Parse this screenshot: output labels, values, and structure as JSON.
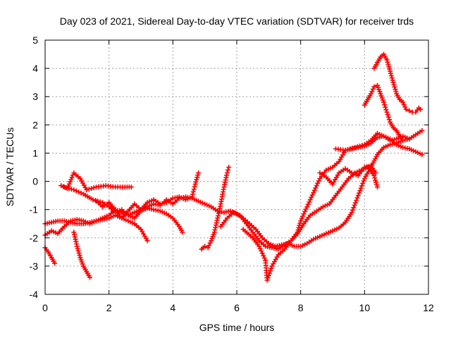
{
  "chart_data": {
    "type": "scatter",
    "title": "Day 023 of 2021, Sidereal Day-to-day VTEC variation (SDTVAR) for receiver trds",
    "xlabel": "GPS time / hours",
    "ylabel": "SDTVAR / TECUs",
    "xlim": [
      0,
      12
    ],
    "ylim": [
      -4,
      5
    ],
    "xticks": [
      0,
      2,
      4,
      6,
      8,
      10,
      12
    ],
    "yticks": [
      -4,
      -3,
      -2,
      -1,
      0,
      1,
      2,
      3,
      4,
      5
    ],
    "grid": true,
    "marker": "+",
    "color": "#ff0000",
    "series": [
      {
        "points": [
          [
            0.0,
            -2.35
          ],
          [
            0.1,
            -2.5
          ],
          [
            0.2,
            -2.7
          ],
          [
            0.3,
            -2.9
          ]
        ]
      },
      {
        "points": [
          [
            0.9,
            -1.8
          ],
          [
            1.0,
            -2.3
          ],
          [
            1.1,
            -2.7
          ],
          [
            1.2,
            -3.0
          ],
          [
            1.3,
            -3.2
          ],
          [
            1.4,
            -3.4
          ]
        ]
      },
      {
        "points": [
          [
            0.0,
            -1.9
          ],
          [
            0.2,
            -1.75
          ],
          [
            0.4,
            -1.85
          ],
          [
            0.6,
            -1.6
          ],
          [
            0.8,
            -1.4
          ],
          [
            1.0,
            -1.35
          ],
          [
            1.2,
            -1.4
          ],
          [
            1.4,
            -1.5
          ],
          [
            1.6,
            -1.4
          ],
          [
            1.8,
            -1.35
          ],
          [
            2.0,
            -1.3
          ],
          [
            2.2,
            -1.2
          ],
          [
            2.4,
            -1.3
          ],
          [
            2.6,
            -1.4
          ],
          [
            2.8,
            -1.5
          ],
          [
            3.0,
            -1.7
          ],
          [
            3.2,
            -2.1
          ]
        ]
      },
      {
        "points": [
          [
            0.0,
            -1.5
          ],
          [
            0.2,
            -1.45
          ],
          [
            0.4,
            -1.4
          ],
          [
            0.6,
            -1.4
          ],
          [
            0.8,
            -1.45
          ],
          [
            1.0,
            -1.5
          ],
          [
            1.2,
            -1.5
          ],
          [
            1.4,
            -1.45
          ],
          [
            1.6,
            -1.4
          ],
          [
            1.8,
            -1.3
          ],
          [
            2.0,
            -1.2
          ],
          [
            2.2,
            -1.0
          ],
          [
            2.4,
            -1.1
          ],
          [
            2.6,
            -1.2
          ],
          [
            2.8,
            -1.1
          ],
          [
            3.0,
            -1.0
          ],
          [
            3.2,
            -0.75
          ],
          [
            3.4,
            -0.65
          ],
          [
            3.6,
            -0.8
          ],
          [
            3.8,
            -0.75
          ],
          [
            4.0,
            -0.6
          ],
          [
            4.2,
            -0.55
          ],
          [
            4.4,
            -0.65
          ],
          [
            4.6,
            -0.55
          ],
          [
            4.7,
            -0.1
          ],
          [
            4.8,
            0.3
          ]
        ]
      },
      {
        "points": [
          [
            0.5,
            -0.15
          ],
          [
            0.7,
            -0.25
          ],
          [
            0.9,
            0.3
          ],
          [
            1.1,
            0.1
          ],
          [
            1.3,
            -0.3
          ],
          [
            1.6,
            -0.2
          ],
          [
            1.9,
            -0.15
          ],
          [
            2.2,
            -0.2
          ],
          [
            2.5,
            -0.2
          ],
          [
            2.7,
            -0.2
          ]
        ]
      },
      {
        "points": [
          [
            0.6,
            -0.2
          ],
          [
            0.9,
            -0.3
          ],
          [
            1.2,
            -0.45
          ],
          [
            1.5,
            -0.65
          ],
          [
            1.8,
            -0.75
          ],
          [
            2.0,
            -0.9
          ],
          [
            2.2,
            -1.1
          ],
          [
            2.4,
            -1.0
          ],
          [
            2.6,
            -1.2
          ],
          [
            2.8,
            -1.3
          ],
          [
            3.0,
            -1.05
          ],
          [
            3.2,
            -0.95
          ],
          [
            3.4,
            -1.0
          ],
          [
            3.6,
            -1.05
          ],
          [
            3.8,
            -1.15
          ],
          [
            4.0,
            -1.3
          ],
          [
            4.2,
            -1.6
          ],
          [
            4.3,
            -1.8
          ]
        ]
      },
      {
        "points": [
          [
            1.6,
            -0.7
          ],
          [
            1.8,
            -0.9
          ],
          [
            2.0,
            -0.75
          ],
          [
            2.2,
            -1.0
          ],
          [
            2.4,
            -1.3
          ],
          [
            2.6,
            -1.05
          ],
          [
            2.8,
            -0.8
          ],
          [
            3.0,
            -1.0
          ],
          [
            3.2,
            -0.9
          ],
          [
            3.4,
            -0.8
          ],
          [
            3.6,
            -0.85
          ],
          [
            3.8,
            -0.65
          ],
          [
            4.0,
            -0.8
          ],
          [
            4.2,
            -0.6
          ],
          [
            4.4,
            -0.55
          ],
          [
            4.6,
            -0.6
          ],
          [
            4.8,
            -0.7
          ],
          [
            5.0,
            -0.8
          ],
          [
            5.2,
            -0.9
          ],
          [
            5.4,
            -1.05
          ],
          [
            5.6,
            -1.1
          ],
          [
            5.8,
            -1.05
          ],
          [
            6.0,
            -1.15
          ],
          [
            6.2,
            -1.3
          ],
          [
            6.4,
            -1.5
          ],
          [
            6.6,
            -1.7
          ],
          [
            6.8,
            -2.0
          ],
          [
            7.0,
            -2.2
          ],
          [
            7.2,
            -2.3
          ],
          [
            7.4,
            -2.25
          ],
          [
            7.6,
            -2.2
          ],
          [
            7.8,
            -2.3
          ],
          [
            8.0,
            -2.3
          ],
          [
            8.2,
            -2.2
          ],
          [
            8.4,
            -2.05
          ],
          [
            8.6,
            -1.95
          ],
          [
            8.8,
            -1.85
          ],
          [
            9.0,
            -1.75
          ],
          [
            9.2,
            -1.65
          ],
          [
            9.4,
            -1.45
          ],
          [
            9.6,
            -1.1
          ],
          [
            9.8,
            -0.5
          ],
          [
            10.0,
            0.1
          ],
          [
            10.2,
            0.5
          ],
          [
            10.4,
            0.95
          ],
          [
            10.6,
            1.2
          ],
          [
            10.8,
            1.3
          ],
          [
            11.0,
            1.35
          ],
          [
            11.2,
            1.45
          ],
          [
            11.4,
            1.5
          ],
          [
            11.6,
            1.65
          ],
          [
            11.8,
            1.8
          ]
        ]
      },
      {
        "points": [
          [
            4.9,
            -2.4
          ],
          [
            5.0,
            -2.3
          ],
          [
            5.1,
            -2.35
          ],
          [
            5.2,
            -2.1
          ],
          [
            5.3,
            -1.8
          ],
          [
            5.4,
            -1.3
          ],
          [
            5.5,
            -0.8
          ],
          [
            5.6,
            -0.2
          ],
          [
            5.7,
            0.3
          ],
          [
            5.75,
            0.5
          ]
        ]
      },
      {
        "points": [
          [
            5.5,
            -1.6
          ],
          [
            5.7,
            -1.3
          ],
          [
            5.9,
            -1.1
          ],
          [
            6.1,
            -1.2
          ],
          [
            6.3,
            -1.5
          ],
          [
            6.5,
            -1.8
          ],
          [
            6.7,
            -2.1
          ],
          [
            6.9,
            -2.3
          ],
          [
            7.1,
            -2.35
          ],
          [
            7.3,
            -2.4
          ],
          [
            7.5,
            -2.25
          ],
          [
            7.7,
            -2.1
          ],
          [
            7.9,
            -1.85
          ],
          [
            8.1,
            -1.5
          ],
          [
            8.3,
            -1.2
          ],
          [
            8.5,
            -1.05
          ],
          [
            8.7,
            -0.9
          ],
          [
            8.9,
            -0.8
          ],
          [
            9.1,
            -0.5
          ],
          [
            9.3,
            -0.2
          ],
          [
            9.5,
            0.1
          ],
          [
            9.7,
            0.3
          ],
          [
            9.9,
            0.4
          ],
          [
            10.1,
            0.5
          ],
          [
            10.3,
            0.2
          ],
          [
            10.4,
            -0.2
          ]
        ]
      },
      {
        "points": [
          [
            6.2,
            -1.7
          ],
          [
            6.5,
            -2.0
          ],
          [
            6.7,
            -2.3
          ],
          [
            6.9,
            -2.8
          ],
          [
            6.95,
            -3.5
          ],
          [
            7.1,
            -3.0
          ],
          [
            7.3,
            -2.6
          ],
          [
            7.5,
            -2.4
          ],
          [
            7.7,
            -2.1
          ],
          [
            7.9,
            -1.8
          ],
          [
            8.0,
            -1.4
          ],
          [
            8.2,
            -0.9
          ],
          [
            8.4,
            -0.4
          ],
          [
            8.6,
            0.1
          ],
          [
            8.8,
            0.4
          ],
          [
            9.0,
            0.5
          ],
          [
            9.2,
            0.7
          ],
          [
            9.4,
            1.1
          ],
          [
            9.6,
            1.15
          ],
          [
            9.8,
            1.2
          ],
          [
            10.0,
            1.25
          ],
          [
            10.2,
            1.35
          ],
          [
            10.4,
            1.55
          ],
          [
            10.6,
            1.6
          ],
          [
            10.8,
            1.5
          ],
          [
            11.0,
            1.3
          ],
          [
            11.2,
            1.2
          ],
          [
            11.4,
            1.15
          ],
          [
            11.6,
            1.05
          ],
          [
            11.8,
            0.95
          ]
        ]
      },
      {
        "points": [
          [
            8.6,
            0.3
          ],
          [
            8.8,
            0.15
          ],
          [
            9.0,
            -0.1
          ],
          [
            9.2,
            0.3
          ],
          [
            9.4,
            0.45
          ],
          [
            9.6,
            0.3
          ],
          [
            9.8,
            0.2
          ],
          [
            10.0,
            0.5
          ],
          [
            10.2,
            0.55
          ],
          [
            10.35,
            0.3
          ]
        ]
      },
      {
        "points": [
          [
            9.1,
            1.15
          ],
          [
            9.4,
            1.1
          ],
          [
            9.7,
            1.2
          ],
          [
            10.0,
            1.3
          ],
          [
            10.2,
            1.45
          ],
          [
            10.4,
            1.7
          ],
          [
            10.6,
            1.6
          ],
          [
            10.8,
            1.45
          ],
          [
            11.0,
            1.5
          ],
          [
            11.2,
            1.6
          ],
          [
            11.4,
            1.5
          ]
        ]
      },
      {
        "points": [
          [
            10.0,
            2.7
          ],
          [
            10.1,
            2.9
          ],
          [
            10.2,
            3.1
          ],
          [
            10.3,
            3.35
          ],
          [
            10.4,
            3.4
          ],
          [
            10.5,
            3.1
          ],
          [
            10.6,
            2.8
          ],
          [
            10.7,
            2.45
          ],
          [
            10.8,
            2.1
          ],
          [
            10.9,
            1.9
          ],
          [
            11.0,
            1.8
          ],
          [
            11.1,
            1.6
          ],
          [
            11.2,
            1.45
          ]
        ]
      },
      {
        "points": [
          [
            10.3,
            4.0
          ],
          [
            10.4,
            4.2
          ],
          [
            10.5,
            4.4
          ],
          [
            10.6,
            4.5
          ],
          [
            10.7,
            4.3
          ],
          [
            10.8,
            3.9
          ],
          [
            10.9,
            3.5
          ],
          [
            11.0,
            3.1
          ],
          [
            11.1,
            2.9
          ],
          [
            11.2,
            2.8
          ],
          [
            11.3,
            2.55
          ],
          [
            11.4,
            2.5
          ],
          [
            11.5,
            2.45
          ],
          [
            11.6,
            2.45
          ],
          [
            11.7,
            2.6
          ],
          [
            11.75,
            2.55
          ]
        ]
      }
    ]
  }
}
